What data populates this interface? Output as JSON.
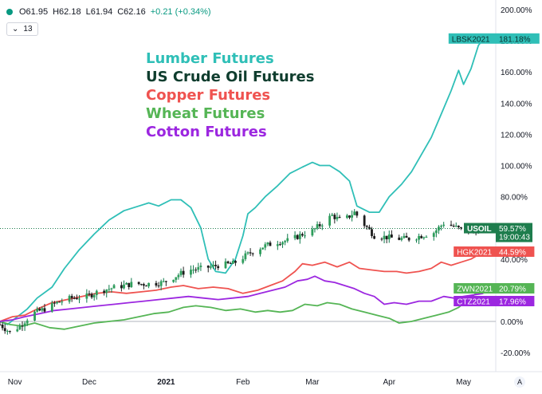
{
  "header": {
    "ohlc": [
      "O61.95",
      "H62.18",
      "L61.94",
      "C62.16"
    ],
    "change": "+0.21 (+0.34%)",
    "indicator_count": "13"
  },
  "legend_entries": [
    {
      "label": "Lumber Futures",
      "color": "#2fbfb7"
    },
    {
      "label": "US Crude Oil Futures",
      "color": "#0f3d2e"
    },
    {
      "label": "Copper Futures",
      "color": "#ef5350"
    },
    {
      "label": "Wheat Futures",
      "color": "#55b555"
    },
    {
      "label": "Cotton Futures",
      "color": "#9c27e0"
    }
  ],
  "corner_button": "A",
  "chart_data": {
    "type": "line",
    "y_unit": "% change",
    "ylim": [
      -25,
      205
    ],
    "y_ticks": [
      -20,
      0,
      20,
      40,
      60,
      80,
      100,
      120,
      140,
      160,
      180,
      200
    ],
    "y_tick_labels": [
      "-20.00%",
      "0.00%",
      "20.00%",
      "40.00%",
      "60.00%",
      "80.00%",
      "100.00%",
      "120.00%",
      "140.00%",
      "160.00%",
      "180.00%",
      "200.00%"
    ],
    "x_start": "2020-10-26",
    "x_end": "2021-05-14",
    "x_ticks": [
      {
        "date": "2020-11-01",
        "label": "Nov"
      },
      {
        "date": "2020-12-01",
        "label": "Dec"
      },
      {
        "date": "2021-01-01",
        "label": "2021"
      },
      {
        "date": "2021-02-01",
        "label": "Feb"
      },
      {
        "date": "2021-03-01",
        "label": "Mar"
      },
      {
        "date": "2021-04-01",
        "label": "Apr"
      },
      {
        "date": "2021-05-01",
        "label": "May"
      }
    ],
    "series": [
      {
        "name": "LBSK2021",
        "color": "#2fbfb7",
        "last_label": "181.18%",
        "points": [
          [
            "2020-10-26",
            0
          ],
          [
            "2020-10-29",
            -2
          ],
          [
            "2020-11-02",
            3
          ],
          [
            "2020-11-06",
            8
          ],
          [
            "2020-11-10",
            15
          ],
          [
            "2020-11-16",
            22
          ],
          [
            "2020-11-21",
            34
          ],
          [
            "2020-11-27",
            46
          ],
          [
            "2020-12-03",
            56
          ],
          [
            "2020-12-09",
            65
          ],
          [
            "2020-12-15",
            71
          ],
          [
            "2020-12-21",
            74
          ],
          [
            "2020-12-25",
            76
          ],
          [
            "2020-12-29",
            74
          ],
          [
            "2021-01-03",
            78
          ],
          [
            "2021-01-07",
            78
          ],
          [
            "2021-01-11",
            73
          ],
          [
            "2021-01-15",
            60
          ],
          [
            "2021-01-18",
            40
          ],
          [
            "2021-01-21",
            32
          ],
          [
            "2021-01-25",
            31
          ],
          [
            "2021-01-29",
            40
          ],
          [
            "2021-02-01",
            55
          ],
          [
            "2021-02-03",
            69
          ],
          [
            "2021-02-06",
            73
          ],
          [
            "2021-02-10",
            80
          ],
          [
            "2021-02-15",
            87
          ],
          [
            "2021-02-20",
            95
          ],
          [
            "2021-02-25",
            99
          ],
          [
            "2021-03-01",
            102
          ],
          [
            "2021-03-04",
            100
          ],
          [
            "2021-03-08",
            100
          ],
          [
            "2021-03-12",
            96
          ],
          [
            "2021-03-16",
            90
          ],
          [
            "2021-03-19",
            74
          ],
          [
            "2021-03-24",
            70
          ],
          [
            "2021-03-28",
            70
          ],
          [
            "2021-04-01",
            80
          ],
          [
            "2021-04-06",
            88
          ],
          [
            "2021-04-10",
            96
          ],
          [
            "2021-04-14",
            107
          ],
          [
            "2021-04-18",
            118
          ],
          [
            "2021-04-22",
            133
          ],
          [
            "2021-04-26",
            148
          ],
          [
            "2021-04-29",
            161
          ],
          [
            "2021-05-01",
            152
          ],
          [
            "2021-05-04",
            162
          ],
          [
            "2021-05-07",
            177
          ],
          [
            "2021-05-09",
            181.18
          ]
        ]
      },
      {
        "name": "USOIL",
        "color": "#0f3d2e",
        "last_label": "59.57%",
        "countdown": "19:00:43",
        "points": [
          [
            "2020-10-26",
            -2
          ],
          [
            "2020-10-30",
            -7
          ],
          [
            "2020-11-03",
            -3
          ],
          [
            "2020-11-08",
            5
          ],
          [
            "2020-11-13",
            8
          ],
          [
            "2020-11-18",
            12
          ],
          [
            "2020-11-24",
            15
          ],
          [
            "2020-11-30",
            16
          ],
          [
            "2020-12-06",
            20
          ],
          [
            "2020-12-12",
            22
          ],
          [
            "2020-12-18",
            24
          ],
          [
            "2020-12-24",
            24
          ],
          [
            "2020-12-31",
            25
          ],
          [
            "2021-01-06",
            30
          ],
          [
            "2021-01-10",
            33
          ],
          [
            "2021-01-16",
            34
          ],
          [
            "2021-01-22",
            36
          ],
          [
            "2021-01-28",
            37
          ],
          [
            "2021-02-04",
            44
          ],
          [
            "2021-02-09",
            48
          ],
          [
            "2021-02-15",
            51
          ],
          [
            "2021-02-20",
            52
          ],
          [
            "2021-02-25",
            56
          ],
          [
            "2021-03-01",
            58
          ],
          [
            "2021-03-05",
            63
          ],
          [
            "2021-03-09",
            68
          ],
          [
            "2021-03-13",
            64
          ],
          [
            "2021-03-18",
            70
          ],
          [
            "2021-03-22",
            62
          ],
          [
            "2021-03-26",
            55
          ],
          [
            "2021-03-31",
            54
          ],
          [
            "2021-04-04",
            53
          ],
          [
            "2021-04-09",
            53
          ],
          [
            "2021-04-14",
            55
          ],
          [
            "2021-04-19",
            57
          ],
          [
            "2021-04-23",
            63
          ],
          [
            "2021-04-27",
            61
          ],
          [
            "2021-05-01",
            58
          ],
          [
            "2021-05-05",
            58
          ],
          [
            "2021-05-09",
            59.57
          ]
        ]
      },
      {
        "name": "HGK2021",
        "color": "#ef5350",
        "last_label": "44.59%",
        "points": [
          [
            "2020-10-26",
            0
          ],
          [
            "2020-10-31",
            3
          ],
          [
            "2020-11-05",
            4
          ],
          [
            "2020-11-10",
            8
          ],
          [
            "2020-11-16",
            12
          ],
          [
            "2020-11-22",
            14
          ],
          [
            "2020-11-28",
            16
          ],
          [
            "2020-12-04",
            18
          ],
          [
            "2020-12-10",
            19
          ],
          [
            "2020-12-16",
            18
          ],
          [
            "2020-12-22",
            19
          ],
          [
            "2020-12-28",
            20
          ],
          [
            "2021-01-03",
            22
          ],
          [
            "2021-01-08",
            23
          ],
          [
            "2021-01-14",
            21
          ],
          [
            "2021-01-20",
            22
          ],
          [
            "2021-01-26",
            21
          ],
          [
            "2021-02-01",
            18
          ],
          [
            "2021-02-07",
            20
          ],
          [
            "2021-02-12",
            23
          ],
          [
            "2021-02-17",
            26
          ],
          [
            "2021-02-22",
            32
          ],
          [
            "2021-02-25",
            37
          ],
          [
            "2021-03-01",
            36
          ],
          [
            "2021-03-06",
            38
          ],
          [
            "2021-03-11",
            35
          ],
          [
            "2021-03-16",
            38
          ],
          [
            "2021-03-20",
            34
          ],
          [
            "2021-03-25",
            33
          ],
          [
            "2021-03-30",
            32
          ],
          [
            "2021-04-04",
            32
          ],
          [
            "2021-04-08",
            31
          ],
          [
            "2021-04-13",
            32
          ],
          [
            "2021-04-18",
            34
          ],
          [
            "2021-04-22",
            38
          ],
          [
            "2021-04-26",
            36
          ],
          [
            "2021-04-30",
            38
          ],
          [
            "2021-05-04",
            40
          ],
          [
            "2021-05-09",
            44.59
          ]
        ]
      },
      {
        "name": "ZWN2021",
        "color": "#55b555",
        "last_label": "20.79%",
        "points": [
          [
            "2020-10-26",
            0
          ],
          [
            "2020-10-30",
            -2
          ],
          [
            "2020-11-04",
            -3
          ],
          [
            "2020-11-09",
            -1
          ],
          [
            "2020-11-15",
            -4
          ],
          [
            "2020-11-21",
            -5
          ],
          [
            "2020-11-27",
            -3
          ],
          [
            "2020-12-03",
            -1
          ],
          [
            "2020-12-09",
            0
          ],
          [
            "2020-12-15",
            1
          ],
          [
            "2020-12-21",
            3
          ],
          [
            "2020-12-27",
            5
          ],
          [
            "2021-01-02",
            6
          ],
          [
            "2021-01-08",
            9
          ],
          [
            "2021-01-13",
            10
          ],
          [
            "2021-01-19",
            9
          ],
          [
            "2021-01-25",
            7
          ],
          [
            "2021-01-31",
            8
          ],
          [
            "2021-02-06",
            6
          ],
          [
            "2021-02-11",
            7
          ],
          [
            "2021-02-16",
            6
          ],
          [
            "2021-02-21",
            7
          ],
          [
            "2021-02-26",
            11
          ],
          [
            "2021-03-03",
            10
          ],
          [
            "2021-03-07",
            12
          ],
          [
            "2021-03-12",
            11
          ],
          [
            "2021-03-17",
            8
          ],
          [
            "2021-03-22",
            6
          ],
          [
            "2021-03-27",
            4
          ],
          [
            "2021-04-01",
            2
          ],
          [
            "2021-04-05",
            -1
          ],
          [
            "2021-04-10",
            0
          ],
          [
            "2021-04-15",
            2
          ],
          [
            "2021-04-20",
            4
          ],
          [
            "2021-04-25",
            6
          ],
          [
            "2021-04-29",
            9
          ],
          [
            "2021-05-03",
            14
          ],
          [
            "2021-05-06",
            18
          ],
          [
            "2021-05-09",
            20.79
          ]
        ]
      },
      {
        "name": "CTZ2021",
        "color": "#9c27e0",
        "last_label": "17.96%",
        "points": [
          [
            "2020-10-26",
            0
          ],
          [
            "2020-10-31",
            1
          ],
          [
            "2020-11-05",
            3
          ],
          [
            "2020-11-11",
            5
          ],
          [
            "2020-11-17",
            7
          ],
          [
            "2020-11-23",
            8
          ],
          [
            "2020-11-29",
            9
          ],
          [
            "2020-12-05",
            10
          ],
          [
            "2020-12-11",
            11
          ],
          [
            "2020-12-17",
            12
          ],
          [
            "2020-12-23",
            13
          ],
          [
            "2020-12-29",
            14
          ],
          [
            "2021-01-04",
            15
          ],
          [
            "2021-01-10",
            16
          ],
          [
            "2021-01-16",
            15
          ],
          [
            "2021-01-22",
            14
          ],
          [
            "2021-01-28",
            15
          ],
          [
            "2021-02-03",
            16
          ],
          [
            "2021-02-08",
            18
          ],
          [
            "2021-02-13",
            20
          ],
          [
            "2021-02-18",
            22
          ],
          [
            "2021-02-23",
            26
          ],
          [
            "2021-02-27",
            27
          ],
          [
            "2021-03-02",
            29
          ],
          [
            "2021-03-06",
            26
          ],
          [
            "2021-03-10",
            25
          ],
          [
            "2021-03-14",
            23
          ],
          [
            "2021-03-18",
            21
          ],
          [
            "2021-03-22",
            18
          ],
          [
            "2021-03-26",
            16
          ],
          [
            "2021-03-30",
            11
          ],
          [
            "2021-04-03",
            12
          ],
          [
            "2021-04-08",
            11
          ],
          [
            "2021-04-13",
            13
          ],
          [
            "2021-04-18",
            13
          ],
          [
            "2021-04-23",
            16
          ],
          [
            "2021-04-27",
            15
          ],
          [
            "2021-05-01",
            16
          ],
          [
            "2021-05-05",
            17
          ],
          [
            "2021-05-09",
            17.96
          ]
        ]
      }
    ]
  }
}
